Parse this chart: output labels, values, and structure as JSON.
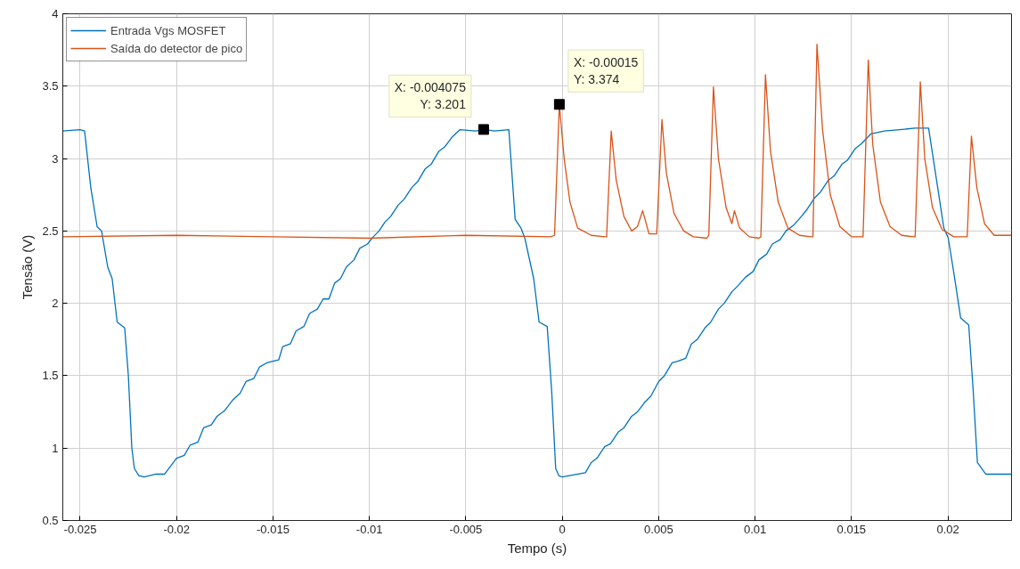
{
  "chart_data": {
    "type": "line",
    "xlabel": "Tempo (s)",
    "ylabel": "Tensão (V)",
    "xlim": [
      -0.0259,
      0.0233
    ],
    "ylim": [
      0.5,
      4
    ],
    "xticks": [
      -0.025,
      -0.02,
      -0.015,
      -0.01,
      -0.005,
      0,
      0.005,
      0.01,
      0.015,
      0.02
    ],
    "yticks": [
      0.5,
      1,
      1.5,
      2,
      2.5,
      3,
      3.5,
      4
    ],
    "grid": true,
    "legend": "top left",
    "line_style": "solid",
    "marker": "none",
    "series": [
      {
        "name": "Entrada Vgs MOSFET",
        "color": "#0072bd",
        "x": [
          -0.0259,
          -0.025,
          -0.02477,
          -0.02445,
          -0.02412,
          -0.02389,
          -0.02357,
          -0.02334,
          -0.02308,
          -0.02269,
          -0.0225,
          -0.02232,
          -0.02219,
          -0.02196,
          -0.02168,
          -0.02108,
          -0.02062,
          -0.02,
          -0.0196,
          -0.0193,
          -0.0189,
          -0.0186,
          -0.0182,
          -0.0179,
          -0.0175,
          -0.0171,
          -0.0167,
          -0.0164,
          -0.016,
          -0.0157,
          -0.0153,
          -0.015,
          -0.0147,
          -0.0145,
          -0.0141,
          -0.0138,
          -0.0134,
          -0.0131,
          -0.0127,
          -0.0124,
          -0.0121,
          -0.0118,
          -0.0115,
          -0.0112,
          -0.0108,
          -0.0105,
          -0.0101,
          -0.0098,
          -0.0095,
          -0.0092,
          -0.0089,
          -0.0085,
          -0.0082,
          -0.0078,
          -0.0075,
          -0.0071,
          -0.0068,
          -0.0064,
          -0.0061,
          -0.0057,
          -0.0053,
          -0.0045,
          -0.004075,
          -0.0035,
          -0.00277,
          -0.00244,
          -0.00214,
          -0.00194,
          -0.00148,
          -0.0012,
          -0.00078,
          -0.00055,
          -0.00034,
          -0.00018,
          0,
          0.0012,
          0.0015,
          0.0018,
          0.0022,
          0.0025,
          0.0029,
          0.0032,
          0.0036,
          0.0039,
          0.0043,
          0.0046,
          0.005,
          0.0053,
          0.0057,
          0.006,
          0.0064,
          0.0067,
          0.007,
          0.0074,
          0.0077,
          0.0081,
          0.0084,
          0.0088,
          0.0091,
          0.0095,
          0.0099,
          0.0102,
          0.0106,
          0.0109,
          0.0113,
          0.0116,
          0.012,
          0.0124,
          0.0127,
          0.0131,
          0.0134,
          0.0138,
          0.0141,
          0.0145,
          0.0148,
          0.0152,
          0.0155,
          0.016,
          0.0167,
          0.0175,
          0.0183,
          0.019,
          0.01979,
          0.02002,
          0.02032,
          0.02066,
          0.02108,
          0.02131,
          0.02153,
          0.02196,
          0.0233
        ],
        "values": [
          3.19,
          3.2,
          3.19,
          2.8,
          2.53,
          2.5,
          2.25,
          2.17,
          1.87,
          1.83,
          1.5,
          1.0,
          0.86,
          0.81,
          0.8,
          0.82,
          0.82,
          0.93,
          0.95,
          1.02,
          1.04,
          1.14,
          1.16,
          1.22,
          1.26,
          1.33,
          1.38,
          1.46,
          1.48,
          1.56,
          1.59,
          1.6,
          1.61,
          1.7,
          1.72,
          1.81,
          1.84,
          1.93,
          1.96,
          2.03,
          2.03,
          2.14,
          2.17,
          2.25,
          2.3,
          2.38,
          2.41,
          2.46,
          2.5,
          2.56,
          2.6,
          2.68,
          2.72,
          2.8,
          2.84,
          2.93,
          2.96,
          3.05,
          3.08,
          3.15,
          3.2,
          3.19,
          3.201,
          3.19,
          3.2,
          2.58,
          2.52,
          2.45,
          2.17,
          1.87,
          1.84,
          1.4,
          0.86,
          0.81,
          0.8,
          0.83,
          0.9,
          0.93,
          1.01,
          1.03,
          1.11,
          1.14,
          1.22,
          1.25,
          1.32,
          1.36,
          1.46,
          1.5,
          1.59,
          1.6,
          1.62,
          1.72,
          1.75,
          1.83,
          1.87,
          1.96,
          2.0,
          2.08,
          2.12,
          2.18,
          2.22,
          2.3,
          2.34,
          2.41,
          2.44,
          2.5,
          2.54,
          2.6,
          2.65,
          2.73,
          2.77,
          2.85,
          2.88,
          2.96,
          2.99,
          3.07,
          3.1,
          3.17,
          3.19,
          3.2,
          3.21,
          3.21,
          2.52,
          2.45,
          2.2,
          1.9,
          1.85,
          1.4,
          0.9,
          0.82,
          0.82
        ]
      },
      {
        "name": "Saída do detector de pico",
        "color": "#d95319",
        "x": [
          -0.0259,
          -0.02,
          -0.015,
          -0.01,
          -0.005,
          -0.0006,
          -0.0004,
          -0.00015,
          0.0001,
          0.0004,
          0.0008,
          0.0015,
          0.0022,
          0.0023,
          0.00254,
          0.0028,
          0.0032,
          0.0036,
          0.0039,
          0.00417,
          0.0045,
          0.0049,
          0.00517,
          0.0054,
          0.0058,
          0.0063,
          0.0068,
          0.0075,
          0.0076,
          0.00784,
          0.0081,
          0.0085,
          0.0088,
          0.00893,
          0.0092,
          0.0097,
          0.0102,
          0.0103,
          0.01054,
          0.0108,
          0.0112,
          0.0117,
          0.0123,
          0.0129,
          0.013,
          0.01321,
          0.0135,
          0.0139,
          0.0144,
          0.015,
          0.0155,
          0.0156,
          0.01587,
          0.0161,
          0.0165,
          0.017,
          0.0176,
          0.0182,
          0.0183,
          0.01857,
          0.0188,
          0.0192,
          0.0197,
          0.0203,
          0.0209,
          0.021,
          0.02122,
          0.0215,
          0.0219,
          0.0224,
          0.0233
        ],
        "values": [
          2.46,
          2.47,
          2.46,
          2.45,
          2.47,
          2.46,
          2.47,
          3.374,
          3.0,
          2.7,
          2.52,
          2.47,
          2.46,
          2.46,
          3.19,
          2.85,
          2.6,
          2.5,
          2.53,
          2.64,
          2.48,
          2.48,
          3.27,
          2.9,
          2.62,
          2.5,
          2.46,
          2.45,
          2.47,
          3.495,
          3.0,
          2.66,
          2.55,
          2.64,
          2.52,
          2.46,
          2.45,
          2.46,
          3.58,
          3.05,
          2.7,
          2.52,
          2.47,
          2.46,
          2.46,
          3.79,
          3.2,
          2.75,
          2.53,
          2.46,
          2.46,
          2.46,
          3.68,
          3.1,
          2.7,
          2.53,
          2.47,
          2.46,
          2.46,
          3.53,
          3.0,
          2.66,
          2.51,
          2.46,
          2.46,
          2.46,
          3.155,
          2.8,
          2.55,
          2.47,
          2.47
        ]
      }
    ],
    "annotations": [
      {
        "text": "X: -0.004075\nY: 3.201",
        "x": -0.004075,
        "y": 3.201
      },
      {
        "text": "X: -0.00015\nY: 3.374",
        "x": -0.00015,
        "y": 3.374
      }
    ]
  }
}
